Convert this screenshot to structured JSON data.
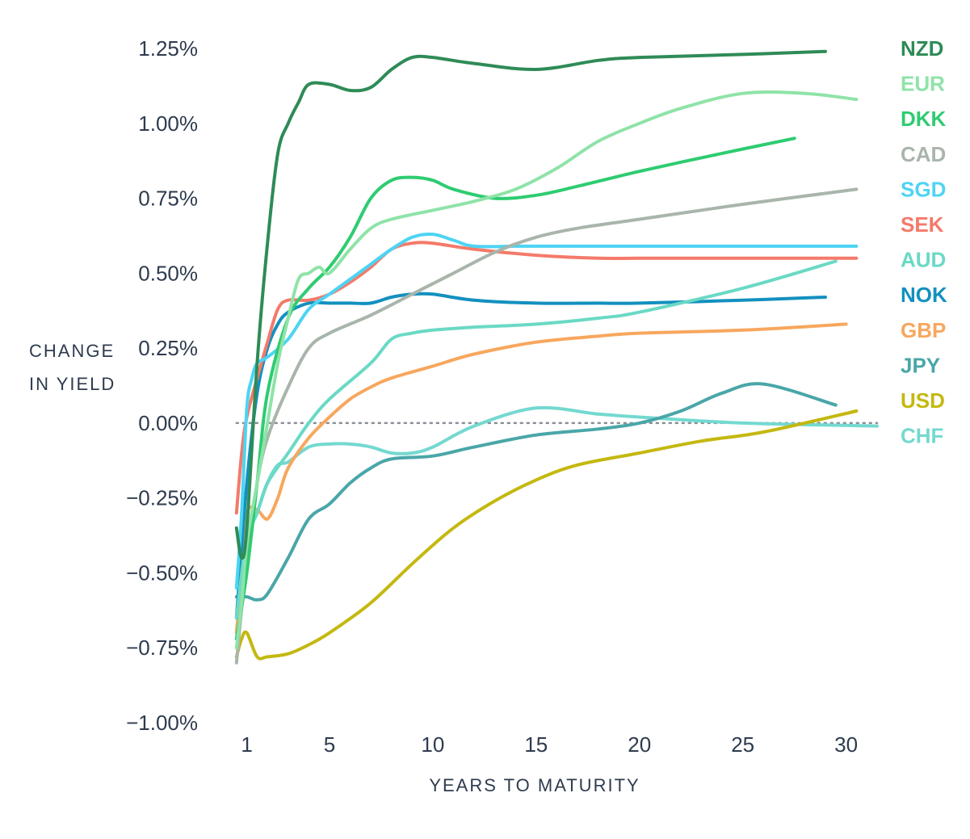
{
  "chart_data": {
    "type": "line",
    "title": "",
    "xlabel": "YEARS TO MATURITY",
    "ylabel": [
      "CHANGE",
      "IN YIELD"
    ],
    "x_ticks": [
      1,
      5,
      10,
      15,
      20,
      25,
      30
    ],
    "y_ticks": [
      1.25,
      1.0,
      0.75,
      0.5,
      0.25,
      0.0,
      -0.25,
      -0.5,
      -0.75,
      -1.0
    ],
    "y_tick_labels": [
      "1.25%",
      "1.00%",
      "0.75%",
      "0.50%",
      "0.25%",
      "0.00%",
      "−0.25%",
      "−0.50%",
      "−0.75%",
      "−1.00%"
    ],
    "xlim": [
      0,
      31.5
    ],
    "ylim": [
      -1.0,
      1.25
    ],
    "zero_line": true,
    "grid": false,
    "legend_position": "right",
    "series": [
      {
        "name": "NZD",
        "color": "#2e8b57",
        "x": [
          0.5,
          0.75,
          1,
          1.5,
          2,
          2.5,
          3,
          3.5,
          4,
          5,
          6,
          7,
          8,
          9,
          10,
          12,
          15,
          18,
          20,
          25,
          29
        ],
        "y": [
          -0.35,
          -0.45,
          -0.35,
          0.2,
          0.6,
          0.9,
          1.0,
          1.07,
          1.13,
          1.13,
          1.11,
          1.12,
          1.18,
          1.22,
          1.22,
          1.2,
          1.18,
          1.21,
          1.22,
          1.23,
          1.24
        ]
      },
      {
        "name": "EUR",
        "color": "#8fe3a8",
        "x": [
          0.5,
          0.75,
          1,
          1.5,
          2,
          2.5,
          3,
          3.5,
          4,
          4.5,
          5,
          6,
          7,
          8,
          10,
          12,
          14,
          16,
          18,
          20,
          22,
          25,
          28,
          30.5
        ],
        "y": [
          -0.75,
          -0.6,
          -0.4,
          -0.2,
          0.0,
          0.2,
          0.35,
          0.48,
          0.5,
          0.52,
          0.5,
          0.58,
          0.65,
          0.68,
          0.71,
          0.74,
          0.78,
          0.85,
          0.94,
          1.0,
          1.05,
          1.1,
          1.1,
          1.08
        ]
      },
      {
        "name": "DKK",
        "color": "#2ecc71",
        "x": [
          0.5,
          1,
          1.5,
          2,
          3,
          4,
          5,
          6,
          7,
          8,
          9,
          10,
          11,
          13,
          15,
          17,
          20,
          24,
          27.5
        ],
        "y": [
          -0.72,
          -0.5,
          -0.2,
          0.1,
          0.35,
          0.45,
          0.52,
          0.62,
          0.75,
          0.81,
          0.82,
          0.81,
          0.78,
          0.75,
          0.76,
          0.79,
          0.84,
          0.9,
          0.95
        ]
      },
      {
        "name": "CAD",
        "color": "#a9b5ab",
        "x": [
          0.5,
          1,
          1.5,
          2,
          3,
          4,
          5,
          7,
          9,
          11,
          13,
          15,
          17,
          20,
          25,
          30.5
        ],
        "y": [
          -0.8,
          -0.45,
          -0.2,
          -0.05,
          0.12,
          0.25,
          0.3,
          0.36,
          0.43,
          0.5,
          0.57,
          0.62,
          0.65,
          0.68,
          0.73,
          0.78
        ]
      },
      {
        "name": "SGD",
        "color": "#4dd4f3",
        "x": [
          0.5,
          0.75,
          1,
          1.25,
          1.5,
          2,
          3,
          4,
          5,
          6,
          7,
          8,
          9,
          10,
          11,
          12,
          14,
          16,
          20,
          25,
          30.5
        ],
        "y": [
          -0.55,
          -0.3,
          0.05,
          0.15,
          0.2,
          0.22,
          0.28,
          0.38,
          0.43,
          0.48,
          0.53,
          0.58,
          0.62,
          0.63,
          0.61,
          0.59,
          0.59,
          0.59,
          0.59,
          0.59,
          0.59
        ]
      },
      {
        "name": "SEK",
        "color": "#f47a6a",
        "x": [
          0.5,
          0.75,
          1,
          1.5,
          2,
          2.5,
          3,
          4,
          5,
          6,
          7,
          8,
          9,
          10,
          12,
          15,
          18,
          20,
          25,
          30.5
        ],
        "y": [
          -0.3,
          -0.1,
          0.02,
          0.15,
          0.27,
          0.38,
          0.41,
          0.41,
          0.43,
          0.47,
          0.52,
          0.58,
          0.6,
          0.6,
          0.58,
          0.56,
          0.55,
          0.55,
          0.55,
          0.55
        ]
      },
      {
        "name": "AUD",
        "color": "#6ad9c5",
        "x": [
          0.5,
          1,
          1.5,
          2,
          3,
          4,
          5,
          7,
          8,
          9,
          10,
          12,
          15,
          18,
          20,
          25,
          29.5
        ],
        "y": [
          -0.65,
          -0.38,
          -0.3,
          -0.2,
          -0.1,
          0.0,
          0.08,
          0.2,
          0.28,
          0.3,
          0.31,
          0.32,
          0.33,
          0.35,
          0.37,
          0.45,
          0.54
        ]
      },
      {
        "name": "NOK",
        "color": "#1390bf",
        "x": [
          0.5,
          1,
          1.5,
          2,
          2.5,
          3,
          4,
          5,
          6,
          7,
          8,
          9,
          10,
          12,
          15,
          18,
          20,
          25,
          29
        ],
        "y": [
          -0.65,
          -0.2,
          0.1,
          0.25,
          0.33,
          0.37,
          0.4,
          0.4,
          0.4,
          0.4,
          0.42,
          0.43,
          0.43,
          0.41,
          0.4,
          0.4,
          0.4,
          0.41,
          0.42
        ]
      },
      {
        "name": "GBP",
        "color": "#f7a75e",
        "x": [
          0.5,
          0.75,
          1,
          1.5,
          2,
          2.5,
          3,
          4,
          5,
          6,
          7,
          8,
          10,
          12,
          15,
          18,
          20,
          25,
          30
        ],
        "y": [
          -0.7,
          -0.5,
          -0.3,
          -0.29,
          -0.32,
          -0.25,
          -0.15,
          -0.05,
          0.02,
          0.08,
          0.12,
          0.15,
          0.19,
          0.23,
          0.27,
          0.29,
          0.3,
          0.31,
          0.33
        ]
      },
      {
        "name": "JPY",
        "color": "#4aa6a8",
        "x": [
          0.5,
          1,
          1.5,
          2,
          3,
          4,
          5,
          6,
          7,
          8,
          10,
          12,
          15,
          18,
          20,
          22,
          24,
          26,
          29.5
        ],
        "y": [
          -0.58,
          -0.58,
          -0.59,
          -0.57,
          -0.45,
          -0.32,
          -0.27,
          -0.2,
          -0.15,
          -0.12,
          -0.11,
          -0.08,
          -0.04,
          -0.02,
          0.0,
          0.04,
          0.1,
          0.13,
          0.06
        ]
      },
      {
        "name": "USD",
        "color": "#c4b810",
        "x": [
          0.5,
          0.75,
          1,
          1.5,
          2,
          3,
          4,
          5,
          7,
          9,
          11,
          13,
          15,
          17,
          20,
          23,
          26,
          30.5
        ],
        "y": [
          -0.78,
          -0.72,
          -0.7,
          -0.78,
          -0.78,
          -0.77,
          -0.74,
          -0.7,
          -0.6,
          -0.47,
          -0.35,
          -0.26,
          -0.19,
          -0.14,
          -0.1,
          -0.06,
          -0.03,
          0.04
        ]
      },
      {
        "name": "CHF",
        "color": "#74d9d0",
        "x": [
          0.5,
          1,
          1.5,
          2,
          2.5,
          3,
          4,
          5,
          6,
          7,
          8,
          9,
          10,
          12,
          15,
          18,
          20,
          25,
          31.5
        ],
        "y": [
          -0.7,
          -0.4,
          -0.3,
          -0.2,
          -0.14,
          -0.13,
          -0.08,
          -0.07,
          -0.07,
          -0.08,
          -0.1,
          -0.1,
          -0.08,
          -0.01,
          0.05,
          0.03,
          0.02,
          0.0,
          -0.01
        ]
      }
    ]
  }
}
